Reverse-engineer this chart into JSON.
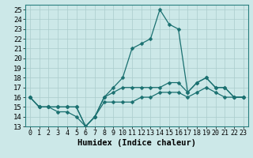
{
  "xlabel": "Humidex (Indice chaleur)",
  "ylabel": "",
  "background_color": "#cce8e8",
  "grid_color": "#aacccc",
  "line_color": "#1a7070",
  "x_values": [
    0,
    1,
    2,
    3,
    4,
    5,
    6,
    7,
    8,
    9,
    10,
    11,
    12,
    13,
    14,
    15,
    16,
    17,
    18,
    19,
    20,
    21,
    22,
    23
  ],
  "line1": [
    16,
    15,
    15,
    15,
    15,
    15,
    13,
    14,
    16,
    17,
    18,
    21,
    21.5,
    22,
    25,
    23.5,
    23,
    16.5,
    17.5,
    18,
    17,
    17,
    16,
    16
  ],
  "line2": [
    16,
    15,
    15,
    14.5,
    14.5,
    14,
    13,
    14,
    16,
    16.5,
    17,
    17,
    17,
    17,
    17,
    17.5,
    17.5,
    16.5,
    17.5,
    18,
    17,
    17,
    16,
    16
  ],
  "line3": [
    16,
    15,
    15,
    15,
    15,
    15,
    13,
    14,
    15.5,
    15.5,
    15.5,
    15.5,
    16,
    16,
    16.5,
    16.5,
    16.5,
    16,
    16.5,
    17,
    16.5,
    16,
    16,
    16
  ],
  "ylim": [
    13,
    25.5
  ],
  "xlim": [
    -0.5,
    23.5
  ],
  "yticks": [
    13,
    14,
    15,
    16,
    17,
    18,
    19,
    20,
    21,
    22,
    23,
    24,
    25
  ],
  "xticks": [
    0,
    1,
    2,
    3,
    4,
    5,
    6,
    7,
    8,
    9,
    10,
    11,
    12,
    13,
    14,
    15,
    16,
    17,
    18,
    19,
    20,
    21,
    22,
    23
  ],
  "markersize": 2.5,
  "linewidth": 0.9,
  "fontsize": 6.5
}
